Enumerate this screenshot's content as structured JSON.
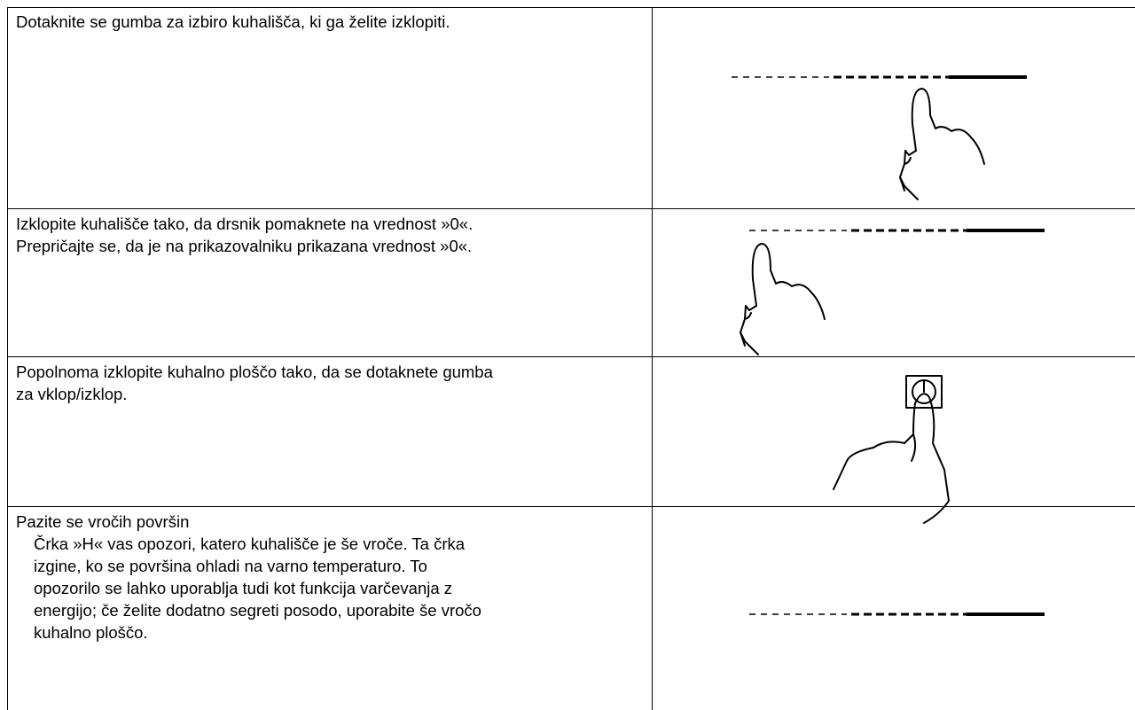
{
  "table": {
    "rows": [
      {
        "lines": [
          "Dotaknite se gumba za izbiro kuhališča, ki ga želite izklopiti."
        ]
      },
      {
        "lines": [
          "Izklopite kuhališče tako, da drsnik pomaknete na vrednost »0«.",
          "Prepričajte se, da je na prikazovalniku prikazana vrednost »0«."
        ]
      },
      {
        "lines": [
          "Popolnoma izklopite kuhalno ploščo tako, da se dotaknete gumba",
          "za vklop/izklop."
        ]
      },
      {
        "heading": "Pazite se vročih površin",
        "lines": [
          "Črka »H« vas opozori, katero kuhališče je še vroče. Ta črka",
          "izgine, ko se površina ohladi na varno temperaturo. To",
          "opozorilo se lahko uporablja tudi kot funkcija varčevanja z",
          "energijo; če želite dodatno segreti posodo, uporabite še vročo",
          "kuhalno ploščo."
        ]
      }
    ]
  }
}
